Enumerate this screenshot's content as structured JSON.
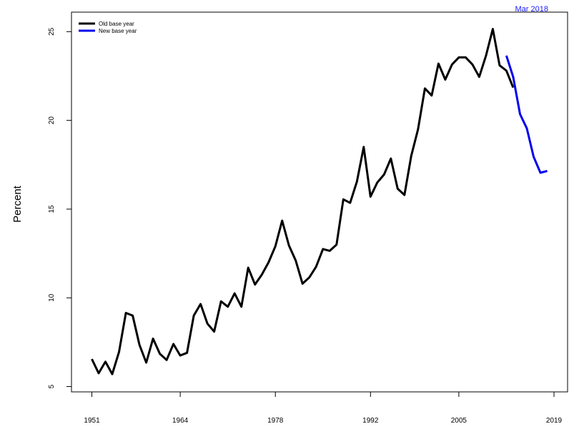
{
  "corner_note": {
    "text": "Mar 2018",
    "color": "#1a1aff"
  },
  "chart_data": {
    "type": "line",
    "title": "",
    "xlabel": "",
    "ylabel": "Percent",
    "xlim": [
      1948,
      2021
    ],
    "ylim": [
      4.7,
      26.1
    ],
    "x_ticks": [
      1951,
      1964,
      1978,
      1992,
      2005,
      2019
    ],
    "y_ticks": [
      5,
      10,
      15,
      20,
      25
    ],
    "grid": false,
    "legend_position": "top-left",
    "series": [
      {
        "name": "Old base year",
        "color": "#000000",
        "x": [
          1951,
          1952,
          1953,
          1954,
          1955,
          1956,
          1957,
          1958,
          1959,
          1960,
          1961,
          1962,
          1963,
          1964,
          1965,
          1966,
          1967,
          1968,
          1969,
          1970,
          1971,
          1972,
          1973,
          1974,
          1975,
          1976,
          1977,
          1978,
          1979,
          1980,
          1981,
          1982,
          1983,
          1984,
          1985,
          1986,
          1987,
          1988,
          1989,
          1990,
          1991,
          1992,
          1993,
          1994,
          1995,
          1996,
          1997,
          1998,
          1999,
          2000,
          2001,
          2002,
          2003,
          2004,
          2005,
          2006,
          2007,
          2008,
          2009,
          2010,
          2011,
          2012,
          2013
        ],
        "y": [
          6.55,
          5.75,
          6.4,
          5.7,
          6.95,
          9.15,
          9.0,
          7.35,
          6.35,
          7.7,
          6.85,
          6.5,
          7.4,
          6.75,
          6.9,
          9.0,
          9.65,
          8.55,
          8.1,
          9.8,
          9.5,
          10.25,
          9.5,
          11.7,
          10.75,
          11.3,
          12.0,
          12.9,
          14.35,
          12.95,
          12.1,
          10.8,
          11.15,
          11.75,
          12.75,
          12.65,
          13.0,
          15.55,
          15.35,
          16.55,
          18.5,
          15.7,
          16.5,
          16.95,
          17.85,
          16.15,
          15.8,
          18.0,
          19.5,
          21.8,
          21.4,
          23.2,
          22.3,
          23.15,
          23.55,
          23.55,
          23.15,
          22.45,
          23.65,
          25.15,
          23.1,
          22.8,
          21.85
        ]
      },
      {
        "name": "New base year",
        "color": "#0000ee",
        "x": [
          2012,
          2013,
          2014,
          2015,
          2016,
          2017,
          2018
        ],
        "y": [
          23.65,
          22.45,
          20.35,
          19.55,
          17.95,
          17.05,
          17.15
        ]
      }
    ]
  }
}
